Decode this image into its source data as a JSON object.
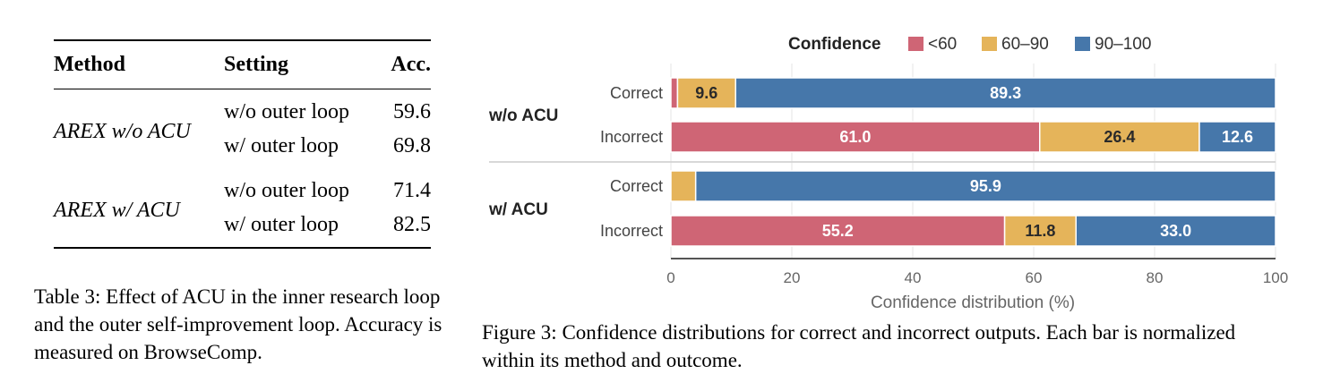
{
  "table": {
    "headers": [
      "Method",
      "Setting",
      "Acc."
    ],
    "groups": [
      {
        "method": "AREX w/o ACU",
        "rows": [
          {
            "setting": "w/o outer loop",
            "acc": "59.6"
          },
          {
            "setting": "w/ outer loop",
            "acc": "69.8"
          }
        ]
      },
      {
        "method": "AREX w/ ACU",
        "rows": [
          {
            "setting": "w/o outer loop",
            "acc": "71.4"
          },
          {
            "setting": "w/ outer loop",
            "acc": "82.5"
          }
        ]
      }
    ],
    "caption": "Table 3: Effect of ACU in the inner research loop and the outer self-improvement loop. Accuracy is measured on BrowseComp."
  },
  "chart_data": {
    "type": "bar",
    "orientation": "horizontal",
    "stacked": true,
    "legend_title": "Confidence",
    "legend_position": "top",
    "xlabel": "Confidence distribution (%)",
    "xlim": [
      0,
      100
    ],
    "xticks": [
      0,
      20,
      40,
      60,
      80,
      100
    ],
    "grid": true,
    "groups": [
      {
        "name": "w/o ACU",
        "categories": [
          "Correct",
          "Incorrect"
        ]
      },
      {
        "name": "w/ ACU",
        "categories": [
          "Correct",
          "Incorrect"
        ]
      }
    ],
    "series": [
      {
        "name": "<60",
        "color": "#cf6575",
        "values": [
          1.1,
          61.0,
          0.0,
          55.2
        ]
      },
      {
        "name": "60–90",
        "color": "#e5b45a",
        "values": [
          9.6,
          26.4,
          4.1,
          11.8
        ]
      },
      {
        "name": "90–100",
        "color": "#4677aa",
        "values": [
          89.3,
          12.6,
          95.9,
          33.0
        ]
      }
    ],
    "data_labels": [
      [
        null,
        "9.6",
        "89.3"
      ],
      [
        "61.0",
        "26.4",
        "12.6"
      ],
      [
        null,
        null,
        "95.9"
      ],
      [
        "55.2",
        "11.8",
        "33.0"
      ]
    ],
    "label_colors": {
      "light": "#ffffff",
      "dark": "#2a2a2a"
    }
  },
  "figure_caption": "Figure 3: Confidence distributions for correct and incorrect outputs. Each bar is normalized within its method and outcome."
}
